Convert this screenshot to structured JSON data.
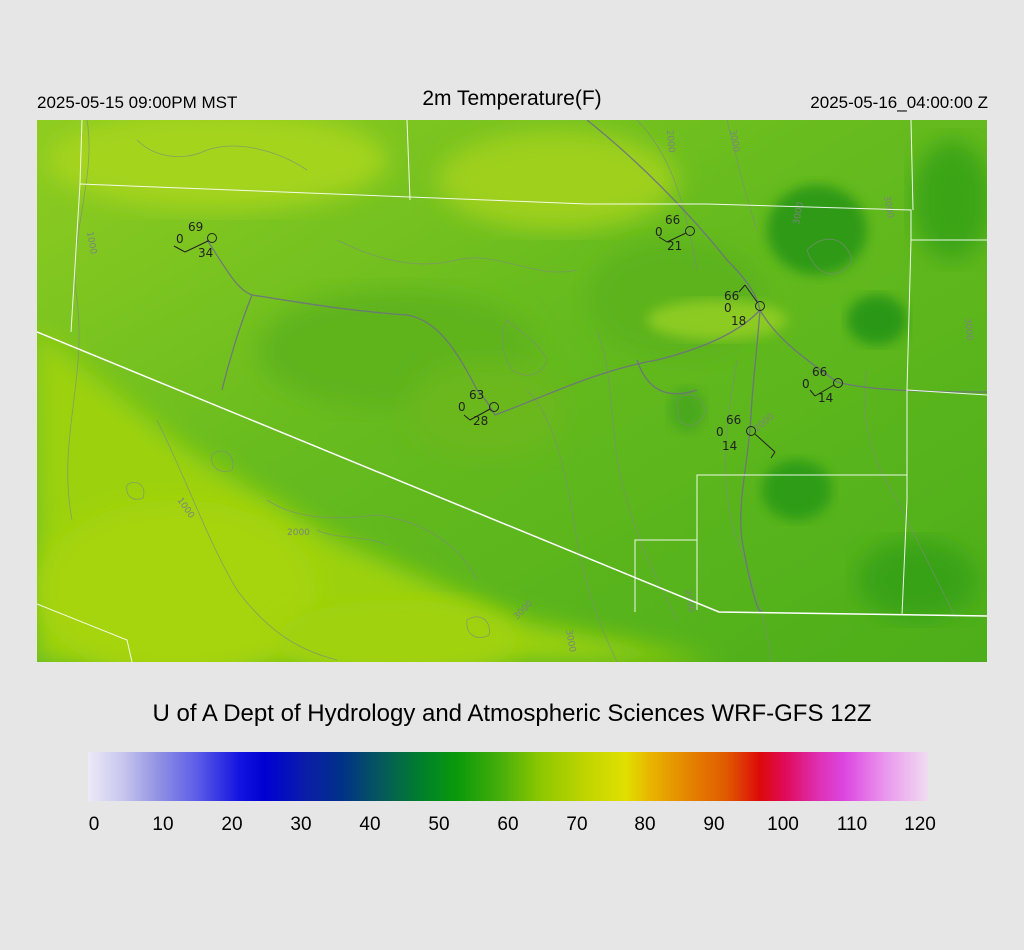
{
  "header": {
    "local_time": "2025-05-15 09:00PM MST",
    "title": "2m Temperature(F)",
    "utc_time": "2025-05-16_04:00:00 Z"
  },
  "credit": "U of A Dept of Hydrology and Atmospheric Sciences WRF-GFS 12Z",
  "colorbar": {
    "ticks": [
      "0",
      "10",
      "20",
      "30",
      "40",
      "50",
      "60",
      "70",
      "80",
      "90",
      "100",
      "110",
      "120"
    ]
  },
  "contour_labels": [
    "1000",
    "1000",
    "2000",
    "2000",
    "3000",
    "3000",
    "3000",
    "3000",
    "2000",
    "3000",
    "3000",
    "2000"
  ],
  "stations": [
    {
      "temp": "69",
      "dew": "0",
      "wind": "34"
    },
    {
      "temp": "66",
      "dew": "0",
      "wind": "21"
    },
    {
      "temp": "66",
      "dew": "0",
      "wind": "18"
    },
    {
      "temp": "66",
      "dew": "0",
      "wind": "14"
    },
    {
      "temp": "63",
      "dew": "0",
      "wind": "28"
    },
    {
      "temp": "66",
      "dew": "0",
      "wind": "14"
    }
  ]
}
